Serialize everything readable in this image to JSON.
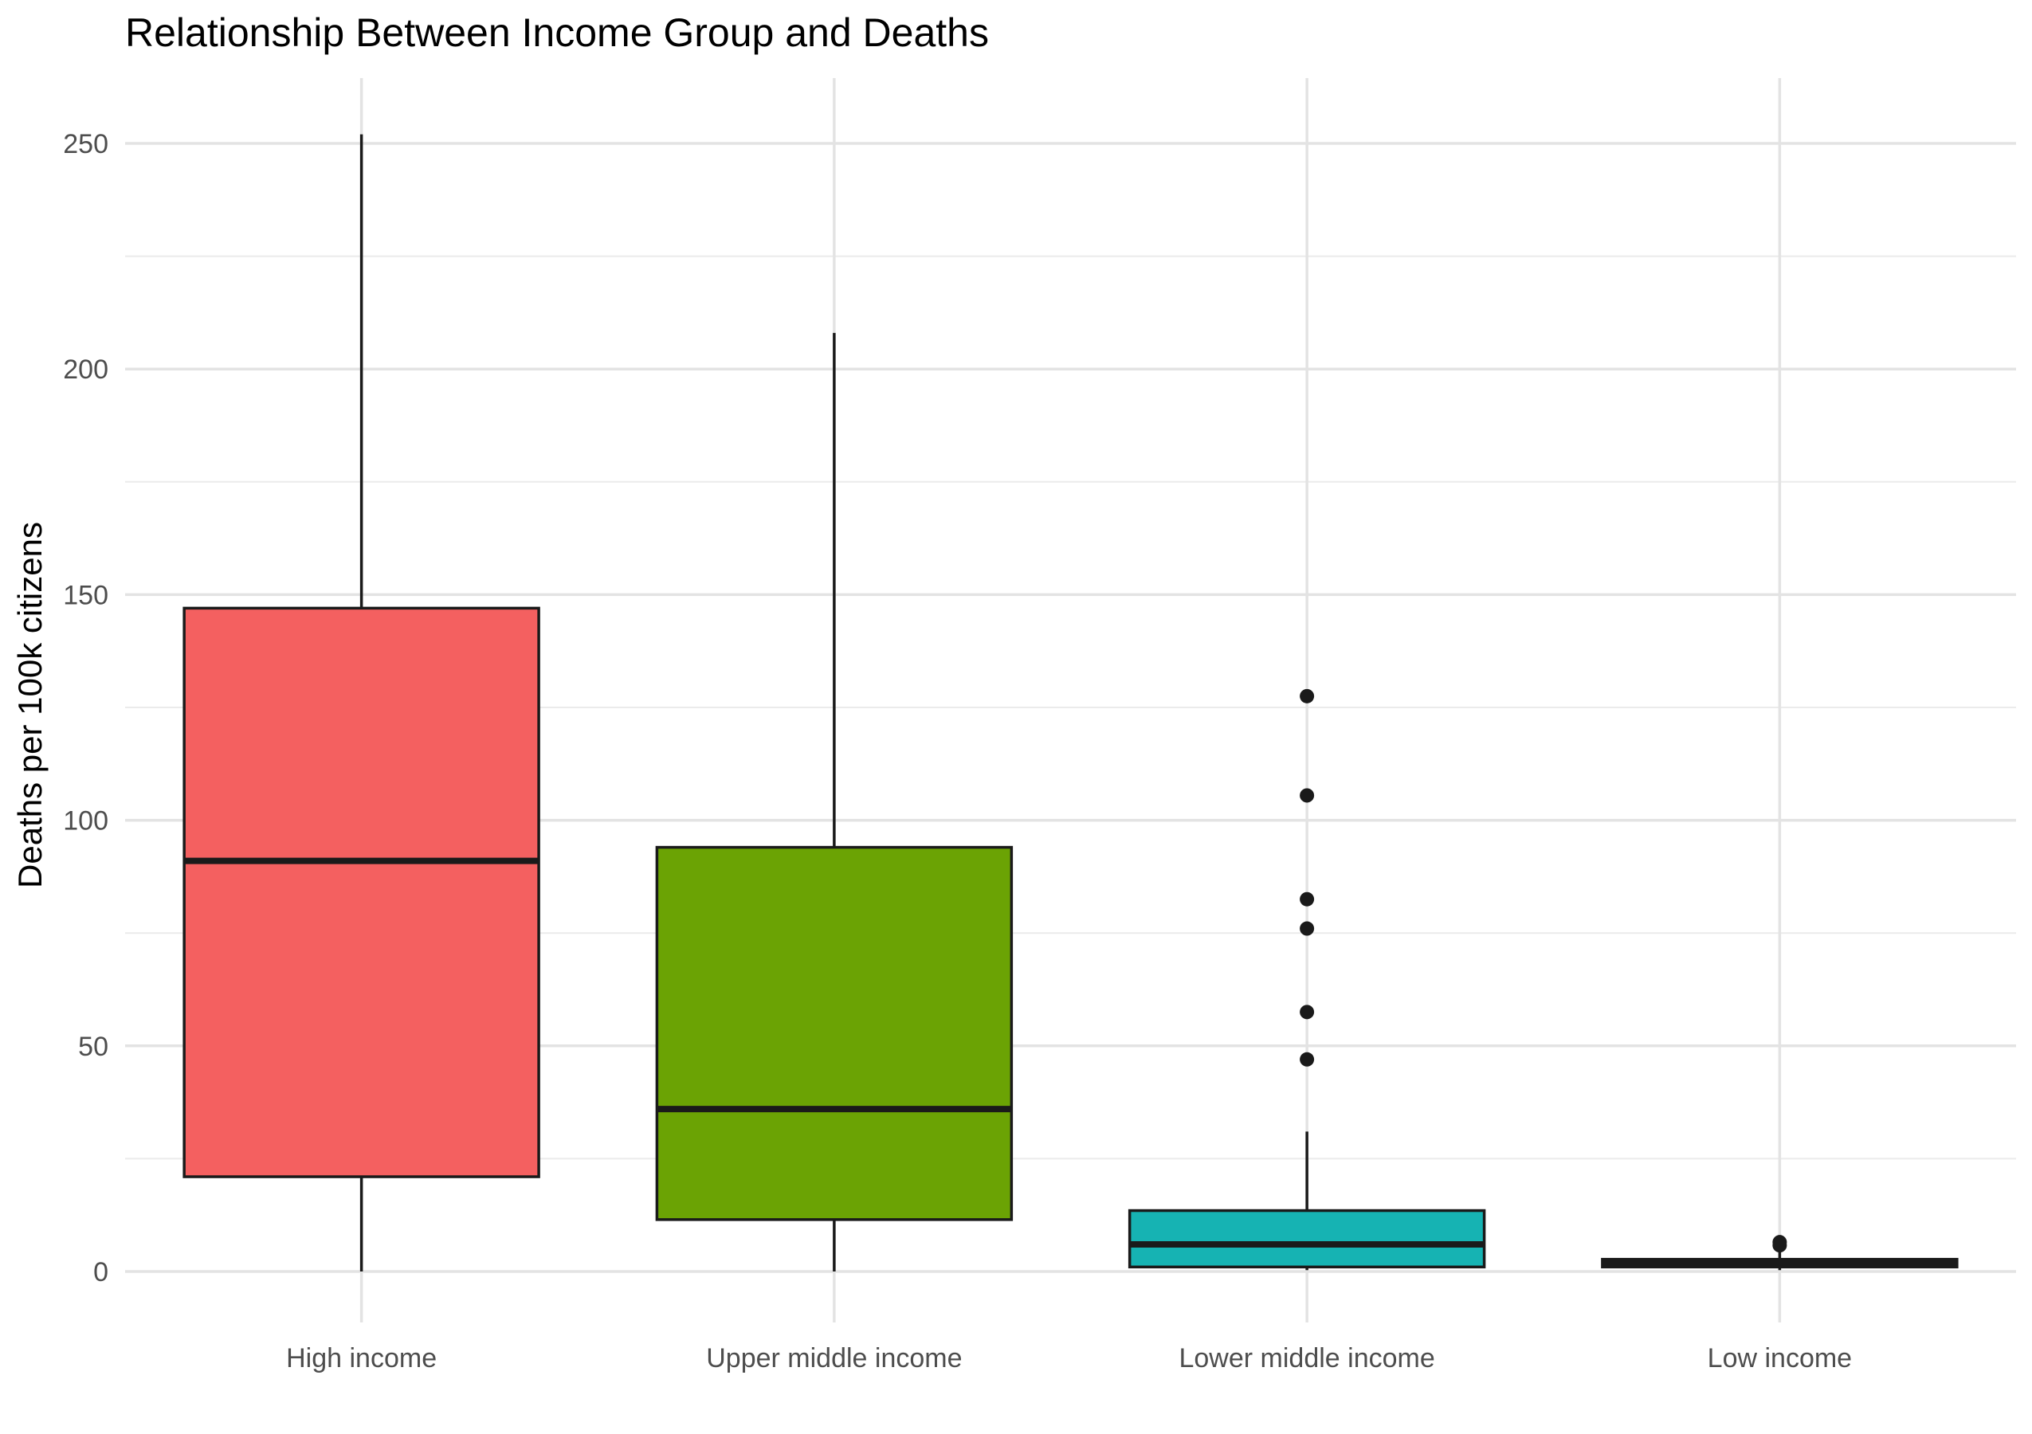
{
  "chart_data": {
    "type": "boxplot",
    "title": "Relationship Between Income Group and Deaths",
    "xlabel": "",
    "ylabel": "Deaths per 100k citizens",
    "ylim": [
      -15,
      265
    ],
    "yticks": [
      0,
      50,
      100,
      150,
      200,
      250
    ],
    "grid": true,
    "legend": "none",
    "categories": [
      "High income",
      "Upper middle income",
      "Lower middle income",
      "Low income"
    ],
    "boxes": [
      {
        "category": "High income",
        "color": "#F46060",
        "whisker_low": 0,
        "q1": 21,
        "median": 91,
        "q3": 147,
        "whisker_high": 252,
        "outliers": []
      },
      {
        "category": "Upper middle income",
        "color": "#6BA304",
        "whisker_low": 0,
        "q1": 11.5,
        "median": 36,
        "q3": 94,
        "whisker_high": 208,
        "outliers": []
      },
      {
        "category": "Lower middle income",
        "color": "#16B3B3",
        "whisker_low": 0.3,
        "q1": 1,
        "median": 6,
        "q3": 13.5,
        "whisker_high": 31,
        "outliers": [
          47,
          57.5,
          76,
          82.5,
          105.5,
          127.5
        ]
      },
      {
        "category": "Low income",
        "color": "#2B2B2B",
        "whisker_low": 0.3,
        "q1": 1,
        "median": 1.8,
        "q3": 2.7,
        "whisker_high": 4.5,
        "outliers": [
          5.8,
          6.5
        ]
      }
    ]
  }
}
